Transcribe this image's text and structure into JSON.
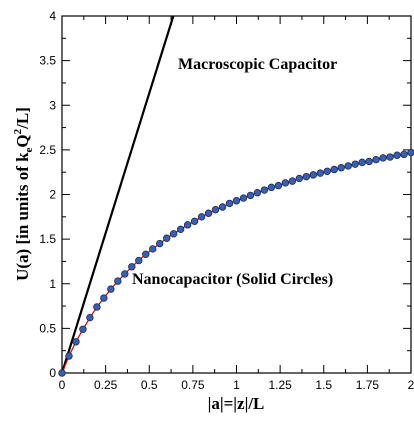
{
  "chart_data": {
    "type": "line",
    "xlim": [
      0,
      2
    ],
    "ylim": [
      0,
      4
    ],
    "x_ticks": [
      "0",
      "0.25",
      "0.5",
      "0.75",
      "1",
      "1.25",
      "1.5",
      "1.75",
      "2"
    ],
    "y_ticks": [
      "0",
      "0.5",
      "1",
      "1.5",
      "2",
      "2.5",
      "3",
      "3.5",
      "4"
    ],
    "xlabel": "|a|=|z|/L",
    "ylabel_parts": {
      "main": "U(a) [in units of  k",
      "sub": "e",
      "mid": "Q",
      "sup": "2",
      "end": "/L]"
    },
    "annotations": [
      "Macroscopic Capacitor",
      "Nanocapacitor (Solid Circles)"
    ],
    "series": [
      {
        "style": "solid-line",
        "color": "#000000",
        "x": [
          0,
          0.638
        ],
        "y": [
          0,
          4.0
        ]
      },
      {
        "style": "line-with-markers",
        "line_color": "#cc0000",
        "marker_color": "#3a5fb0",
        "x": [
          0.0,
          0.04,
          0.08,
          0.12,
          0.16,
          0.2,
          0.24,
          0.28,
          0.32,
          0.36,
          0.4,
          0.44,
          0.48,
          0.52,
          0.56,
          0.6,
          0.64,
          0.68,
          0.72,
          0.76,
          0.8,
          0.84,
          0.88,
          0.92,
          0.96,
          1.0,
          1.04,
          1.08,
          1.12,
          1.16,
          1.2,
          1.24,
          1.28,
          1.32,
          1.36,
          1.4,
          1.44,
          1.48,
          1.52,
          1.56,
          1.6,
          1.64,
          1.68,
          1.72,
          1.76,
          1.8,
          1.84,
          1.88,
          1.92,
          1.96,
          2.0
        ],
        "y": [
          0.0,
          0.19,
          0.35,
          0.49,
          0.62,
          0.74,
          0.84,
          0.94,
          1.03,
          1.11,
          1.19,
          1.26,
          1.33,
          1.39,
          1.45,
          1.51,
          1.56,
          1.61,
          1.66,
          1.7,
          1.75,
          1.79,
          1.83,
          1.86,
          1.9,
          1.93,
          1.96,
          1.99,
          2.02,
          2.05,
          2.08,
          2.1,
          2.13,
          2.15,
          2.18,
          2.2,
          2.22,
          2.24,
          2.26,
          2.28,
          2.3,
          2.32,
          2.34,
          2.36,
          2.37,
          2.39,
          2.41,
          2.42,
          2.44,
          2.45,
          2.47
        ]
      }
    ]
  }
}
